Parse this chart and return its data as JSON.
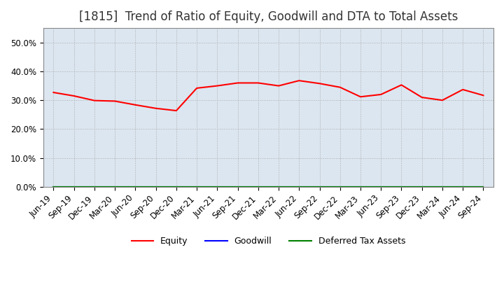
{
  "title": "[1815]  Trend of Ratio of Equity, Goodwill and DTA to Total Assets",
  "x_labels": [
    "Jun-19",
    "Sep-19",
    "Dec-19",
    "Mar-20",
    "Jun-20",
    "Sep-20",
    "Dec-20",
    "Mar-21",
    "Jun-21",
    "Sep-21",
    "Dec-21",
    "Mar-22",
    "Jun-22",
    "Sep-22",
    "Dec-22",
    "Mar-23",
    "Jun-23",
    "Sep-23",
    "Dec-23",
    "Mar-24",
    "Jun-24",
    "Sep-24"
  ],
  "equity": [
    0.327,
    0.315,
    0.299,
    0.297,
    0.284,
    0.272,
    0.264,
    0.342,
    0.35,
    0.36,
    0.36,
    0.35,
    0.368,
    0.358,
    0.345,
    0.312,
    0.32,
    0.353,
    0.31,
    0.3,
    0.337,
    0.317
  ],
  "goodwill": [
    0.0,
    0.0,
    0.0,
    0.0,
    0.0,
    0.0,
    0.0,
    0.0,
    0.0,
    0.0,
    0.0,
    0.0,
    0.0,
    0.0,
    0.0,
    0.0,
    0.0,
    0.0,
    0.0,
    0.0,
    0.0,
    0.0
  ],
  "dta": [
    0.0,
    0.0,
    0.0,
    0.0,
    0.0,
    0.0,
    0.0,
    0.0,
    0.0,
    0.0,
    0.0,
    0.0,
    0.0,
    0.0,
    0.0,
    0.0,
    0.0,
    0.0,
    0.0,
    0.0,
    0.0,
    0.0
  ],
  "equity_color": "#ff0000",
  "goodwill_color": "#0000ff",
  "dta_color": "#008000",
  "ylim": [
    0.0,
    0.55
  ],
  "yticks": [
    0.0,
    0.1,
    0.2,
    0.3,
    0.4,
    0.5
  ],
  "plot_bg_color": "#dce6f0",
  "background_color": "#ffffff",
  "grid_color": "#aaaaaa",
  "title_fontsize": 12,
  "tick_fontsize": 8.5
}
